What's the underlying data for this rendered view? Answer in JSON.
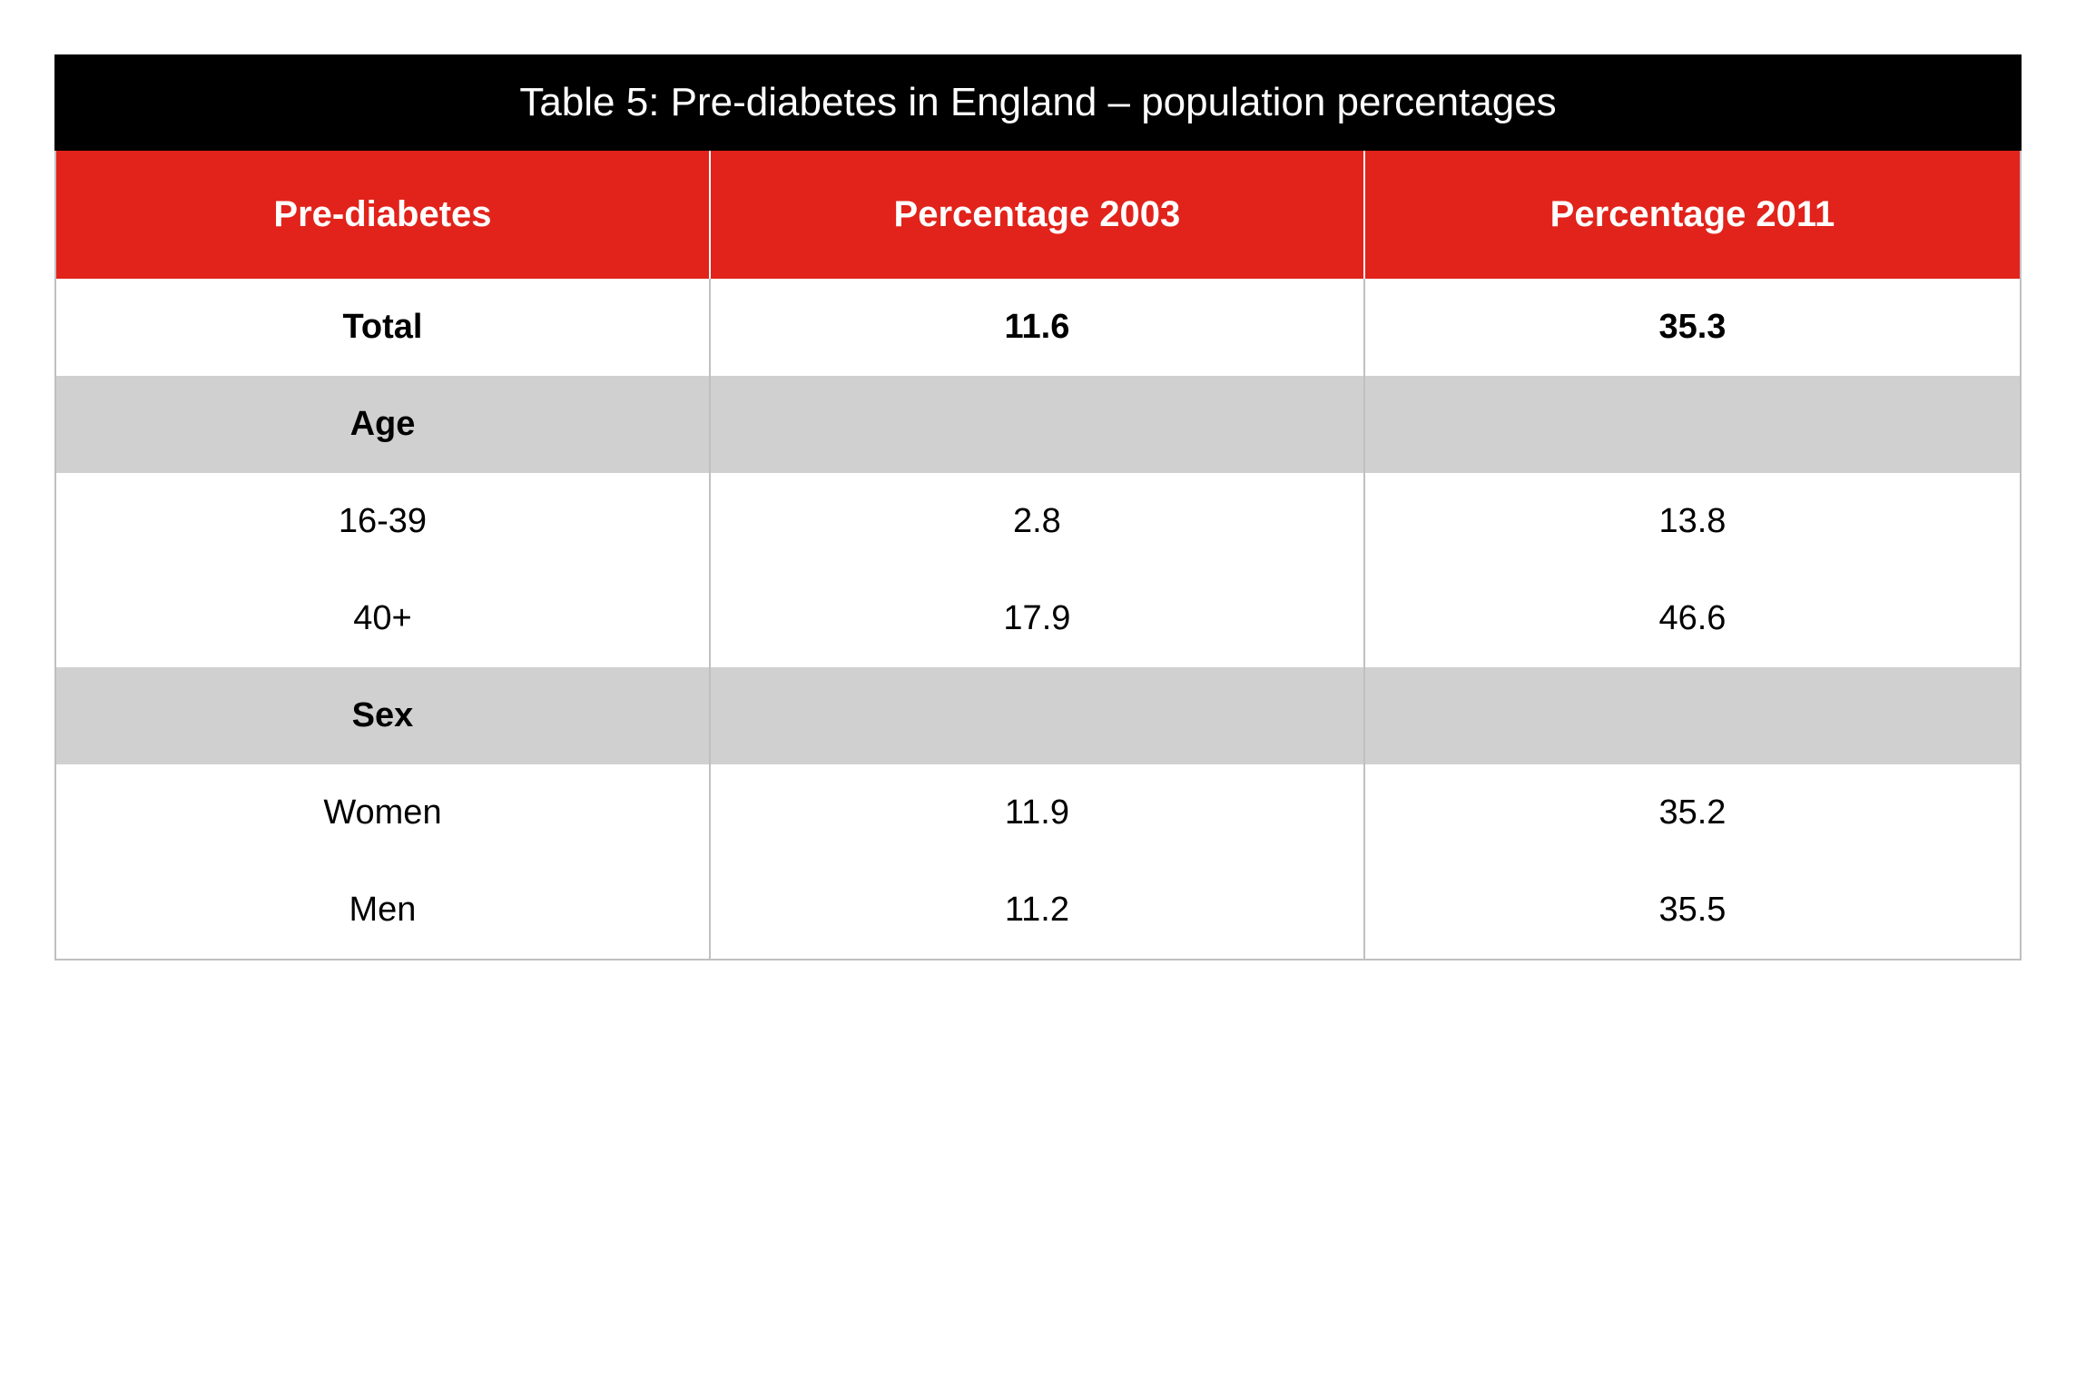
{
  "table": {
    "title": "Table 5: Pre-diabetes in England – population percentages",
    "columns": [
      "Pre-diabetes",
      "Percentage 2003",
      "Percentage 2011"
    ],
    "column_widths_pct": [
      33.3,
      33.3,
      33.4
    ],
    "rows": [
      {
        "type": "bold",
        "cells": [
          "Total",
          "11.6",
          "35.3"
        ]
      },
      {
        "type": "section",
        "cells": [
          "Age",
          "",
          ""
        ]
      },
      {
        "type": "data",
        "cells": [
          "16-39",
          "2.8",
          "13.8"
        ]
      },
      {
        "type": "data",
        "cells": [
          "40+",
          "17.9",
          "46.6"
        ]
      },
      {
        "type": "section",
        "cells": [
          "Sex",
          "",
          ""
        ]
      },
      {
        "type": "data",
        "cells": [
          "Women",
          "11.9",
          "35.2"
        ]
      },
      {
        "type": "data",
        "cells": [
          "Men",
          "11.2",
          "35.5"
        ]
      }
    ],
    "colors": {
      "title_bg": "#000000",
      "title_text": "#ffffff",
      "header_bg": "#e1231b",
      "header_text": "#ffffff",
      "header_divider": "#ffffff",
      "section_bg": "#d0d0d0",
      "body_bg": "#ffffff",
      "border": "#c0c0c0",
      "text": "#000000"
    },
    "typography": {
      "title_fontsize_pt": 33,
      "header_fontsize_pt": 30,
      "body_fontsize_pt": 28,
      "title_weight": 400,
      "header_weight": 700,
      "body_weight": 400,
      "bold_row_weight": 700
    }
  }
}
